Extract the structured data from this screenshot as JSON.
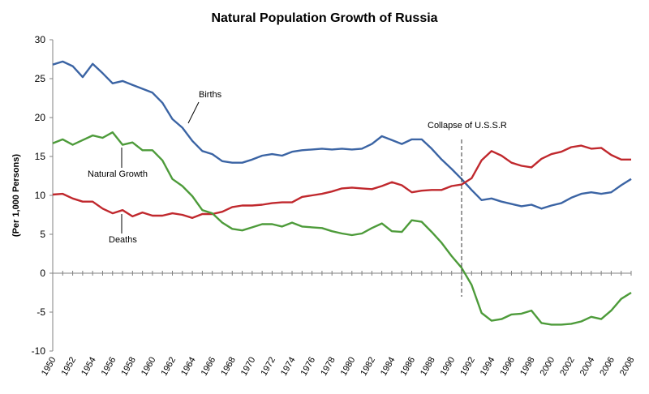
{
  "chart_data": {
    "type": "line",
    "title": "Natural Population Growth of Russia",
    "xlabel": "",
    "ylabel": "(Per 1,000 Persons)",
    "xlim": [
      1950,
      2008
    ],
    "ylim": [
      -10,
      30
    ],
    "y_ticks": [
      -10,
      -5,
      0,
      5,
      10,
      15,
      20,
      25,
      30
    ],
    "x_ticks": [
      1950,
      1952,
      1954,
      1956,
      1958,
      1960,
      1962,
      1964,
      1966,
      1968,
      1970,
      1972,
      1974,
      1976,
      1978,
      1980,
      1982,
      1984,
      1986,
      1988,
      1990,
      1992,
      1994,
      1996,
      1998,
      2000,
      2002,
      2004,
      2006,
      2008
    ],
    "grid": false,
    "x": [
      1950,
      1951,
      1952,
      1953,
      1954,
      1955,
      1956,
      1957,
      1958,
      1959,
      1960,
      1961,
      1962,
      1963,
      1964,
      1965,
      1966,
      1967,
      1968,
      1969,
      1970,
      1971,
      1972,
      1973,
      1974,
      1975,
      1976,
      1977,
      1978,
      1979,
      1980,
      1981,
      1982,
      1983,
      1984,
      1985,
      1986,
      1987,
      1988,
      1989,
      1990,
      1991,
      1992,
      1993,
      1994,
      1995,
      1996,
      1997,
      1998,
      1999,
      2000,
      2001,
      2002,
      2003,
      2004,
      2005,
      2006,
      2007,
      2008
    ],
    "series": [
      {
        "name": "Births",
        "color": "#3b64a4",
        "values": [
          26.8,
          27.2,
          26.6,
          25.2,
          26.9,
          25.7,
          24.4,
          24.7,
          24.2,
          23.7,
          23.2,
          21.9,
          19.8,
          18.7,
          17.0,
          15.7,
          15.3,
          14.4,
          14.2,
          14.2,
          14.6,
          15.1,
          15.3,
          15.1,
          15.6,
          15.8,
          15.9,
          16.0,
          15.9,
          16.0,
          15.9,
          16.0,
          16.6,
          17.6,
          17.1,
          16.6,
          17.2,
          17.2,
          16.0,
          14.6,
          13.4,
          12.1,
          10.7,
          9.4,
          9.6,
          9.2,
          8.9,
          8.6,
          8.8,
          8.3,
          8.7,
          9.0,
          9.7,
          10.2,
          10.4,
          10.2,
          10.4,
          11.3,
          12.1
        ]
      },
      {
        "name": "Deaths",
        "color": "#c0282d",
        "values": [
          10.1,
          10.2,
          9.6,
          9.2,
          9.2,
          8.3,
          7.7,
          8.1,
          7.3,
          7.8,
          7.4,
          7.4,
          7.7,
          7.5,
          7.1,
          7.6,
          7.6,
          7.9,
          8.5,
          8.7,
          8.7,
          8.8,
          9.0,
          9.1,
          9.1,
          9.8,
          10.0,
          10.2,
          10.5,
          10.9,
          11.0,
          10.9,
          10.8,
          11.2,
          11.7,
          11.3,
          10.4,
          10.6,
          10.7,
          10.7,
          11.2,
          11.4,
          12.2,
          14.5,
          15.7,
          15.1,
          14.2,
          13.8,
          13.6,
          14.7,
          15.3,
          15.6,
          16.2,
          16.4,
          16.0,
          16.1,
          15.2,
          14.6,
          14.6
        ]
      },
      {
        "name": "Natural Growth",
        "color": "#4d9b3a",
        "values": [
          16.7,
          17.2,
          16.5,
          17.1,
          17.7,
          17.4,
          18.1,
          16.5,
          16.8,
          15.8,
          15.8,
          14.5,
          12.1,
          11.2,
          9.9,
          8.1,
          7.7,
          6.5,
          5.7,
          5.5,
          5.9,
          6.3,
          6.3,
          6.0,
          6.5,
          6.0,
          5.9,
          5.8,
          5.4,
          5.1,
          4.9,
          5.1,
          5.8,
          6.4,
          5.4,
          5.3,
          6.8,
          6.6,
          5.3,
          3.9,
          2.2,
          0.7,
          -1.5,
          -5.1,
          -6.1,
          -5.9,
          -5.3,
          -5.2,
          -4.8,
          -6.4,
          -6.6,
          -6.6,
          -6.5,
          -6.2,
          -5.6,
          -5.9,
          -4.8,
          -3.3,
          -2.5
        ]
      }
    ],
    "annotations": {
      "births": "Births",
      "natural_growth": "Natural Growth",
      "deaths": "Deaths",
      "collapse": "Collapse of U.S.S.R"
    },
    "collapse_year": 1991
  }
}
